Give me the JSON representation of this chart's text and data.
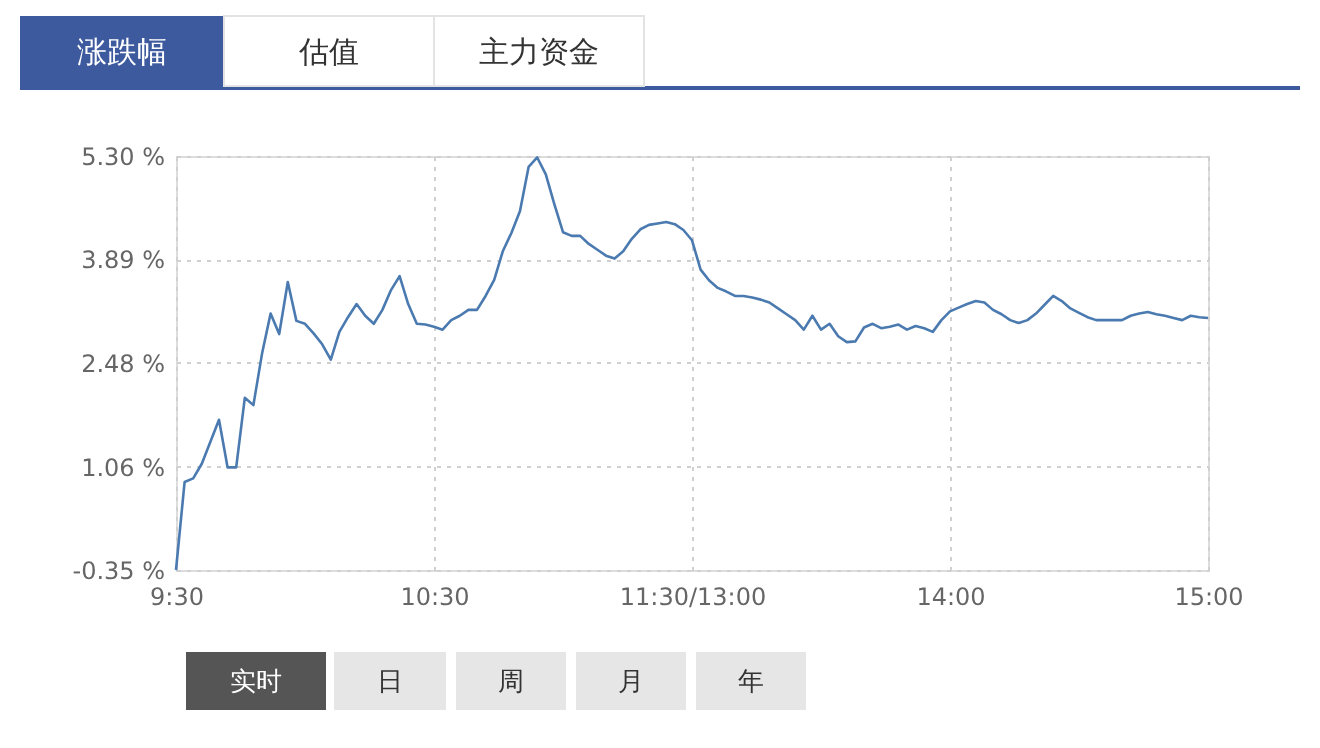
{
  "chart_data": {
    "type": "line",
    "annotations": [
      "涨跌幅",
      "估值",
      "主力资金",
      "实时",
      "日",
      "周",
      "月",
      "年"
    ],
    "categories": [
      "9:30",
      null,
      null,
      null,
      null,
      null,
      null,
      null,
      null,
      null,
      null,
      null,
      null,
      null,
      null,
      null,
      null,
      null,
      null,
      null,
      null,
      null,
      null,
      null,
      null,
      null,
      null,
      null,
      null,
      null,
      "10:30",
      null,
      null,
      null,
      null,
      null,
      null,
      null,
      null,
      null,
      null,
      null,
      null,
      null,
      null,
      null,
      null,
      null,
      null,
      null,
      null,
      null,
      null,
      null,
      null,
      null,
      null,
      null,
      null,
      null,
      "11:30/13:00",
      null,
      null,
      null,
      null,
      null,
      null,
      null,
      null,
      null,
      null,
      null,
      null,
      null,
      null,
      null,
      null,
      null,
      null,
      null,
      null,
      null,
      null,
      null,
      null,
      null,
      null,
      null,
      null,
      null,
      "14:00",
      null,
      null,
      null,
      null,
      null,
      null,
      null,
      null,
      null,
      null,
      null,
      null,
      null,
      null,
      null,
      null,
      null,
      null,
      null,
      null,
      null,
      null,
      null,
      null,
      null,
      null,
      null,
      null,
      null,
      "15:00"
    ],
    "series": [
      {
        "color": "#4a7ab0",
        "values": [
          -0.35,
          0.85,
          0.9,
          1.1,
          1.4,
          1.7,
          1.05,
          1.05,
          2.0,
          1.9,
          2.6,
          3.15,
          2.87,
          3.58,
          3.05,
          3.01,
          2.88,
          2.73,
          2.52,
          2.9,
          3.1,
          3.28,
          3.12,
          3.01,
          3.2,
          3.47,
          3.66,
          3.28,
          3.01,
          3.0,
          2.97,
          2.93,
          3.06,
          3.12,
          3.2,
          3.2,
          3.39,
          3.61,
          4.0,
          4.25,
          4.55,
          5.15,
          5.28,
          5.05,
          4.64,
          4.26,
          4.21,
          4.21,
          4.1,
          4.02,
          3.94,
          3.9,
          4.0,
          4.17,
          4.3,
          4.36,
          4.38,
          4.4,
          4.37,
          4.29,
          4.15,
          3.75,
          3.6,
          3.5,
          3.45,
          3.39,
          3.39,
          3.37,
          3.34,
          3.3,
          3.22,
          3.14,
          3.06,
          2.93,
          3.12,
          2.93,
          3.01,
          2.84,
          2.76,
          2.77,
          2.96,
          3.01,
          2.95,
          2.97,
          3.0,
          2.93,
          2.98,
          2.95,
          2.9,
          3.06,
          3.18,
          3.23,
          3.28,
          3.32,
          3.3,
          3.2,
          3.14,
          3.06,
          3.02,
          3.06,
          3.15,
          3.27,
          3.39,
          3.32,
          3.22,
          3.16,
          3.1,
          3.06,
          3.06,
          3.06,
          3.06,
          3.12,
          3.15,
          3.17,
          3.14,
          3.12,
          3.09,
          3.06,
          3.12,
          3.1,
          3.09
        ]
      }
    ],
    "ylim": [
      -0.35,
      5.3
    ],
    "yticks": [
      {
        "value": -0.35,
        "label": "-0.35 %"
      },
      {
        "value": 1.06,
        "label": "1.06 %"
      },
      {
        "value": 2.48,
        "label": "2.48 %"
      },
      {
        "value": 3.89,
        "label": "3.89 %"
      },
      {
        "value": 5.3,
        "label": "5.30 %"
      }
    ],
    "grid": true
  }
}
